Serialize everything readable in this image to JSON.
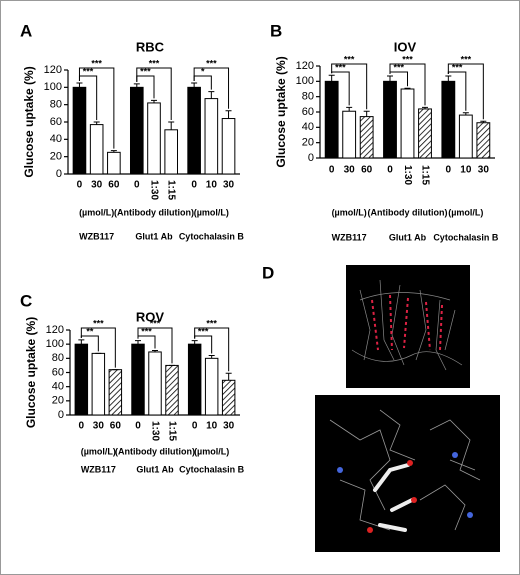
{
  "chart_data": [
    {
      "type": "bar",
      "panel": "A",
      "title": "RBC",
      "y_label": "Glucose uptake (%)",
      "categories": [
        "0",
        "30",
        "60",
        "0",
        "1:30",
        "1:15",
        "0",
        "10",
        "30"
      ],
      "values": [
        100,
        57,
        25,
        100,
        82,
        51,
        100,
        87,
        64
      ],
      "errors": [
        5,
        3,
        2,
        4,
        3,
        9,
        5,
        8,
        9
      ],
      "fills": [
        "black",
        "white",
        "white",
        "black",
        "white",
        "white",
        "black",
        "white",
        "white"
      ],
      "significance": [
        null,
        "***",
        "***",
        null,
        "***",
        "***",
        null,
        "*",
        "***"
      ],
      "groups": [
        {
          "unit": "(µmol/L)",
          "name": "WZB117"
        },
        {
          "unit": "(Antibody dilution)",
          "name": "Glut1 Ab"
        },
        {
          "unit": "(µmol/L)",
          "name": "Cytochalasin B"
        }
      ],
      "ylim": [
        0,
        120
      ],
      "yticks": [
        0,
        20,
        40,
        60,
        80,
        100,
        120
      ]
    },
    {
      "type": "bar",
      "panel": "B",
      "title": "IOV",
      "y_label": "Glucose uptake (%)",
      "categories": [
        "0",
        "30",
        "60",
        "0",
        "1:30",
        "1:15",
        "0",
        "10",
        "30"
      ],
      "values": [
        100,
        61,
        54,
        100,
        90,
        64,
        100,
        56,
        46
      ],
      "errors": [
        8,
        5,
        7,
        7,
        1,
        2,
        7,
        3,
        2
      ],
      "fills": [
        "black",
        "white",
        "hatched",
        "black",
        "white",
        "hatched",
        "black",
        "white",
        "hatched"
      ],
      "significance": [
        null,
        "***",
        "***",
        null,
        "***",
        "***",
        null,
        "***",
        "***"
      ],
      "groups": [
        {
          "unit": "(µmol/L)",
          "name": "WZB117"
        },
        {
          "unit": "(Antibody dilution)",
          "name": "Glut1 Ab"
        },
        {
          "unit": "(µmol/L)",
          "name": "Cytochalasin B"
        }
      ],
      "ylim": [
        0,
        120
      ],
      "yticks": [
        0,
        20,
        40,
        60,
        80,
        100,
        120
      ]
    },
    {
      "type": "bar",
      "panel": "C",
      "title": "ROV",
      "y_label": "Glucose uptake (%)",
      "categories": [
        "0",
        "30",
        "60",
        "0",
        "1:30",
        "1:15",
        "0",
        "10",
        "30"
      ],
      "values": [
        100,
        87,
        64,
        100,
        89,
        70,
        100,
        80,
        49
      ],
      "errors": [
        6,
        0,
        0,
        5,
        2,
        0,
        5,
        4,
        10
      ],
      "fills": [
        "black",
        "white",
        "hatched",
        "black",
        "white",
        "hatched",
        "black",
        "white",
        "hatched"
      ],
      "significance": [
        null,
        "**",
        "***",
        null,
        "***",
        "***",
        null,
        "***",
        "***"
      ],
      "groups": [
        {
          "unit": "(µmol/L)",
          "name": "WZB117"
        },
        {
          "unit": "(Antibody dilution)",
          "name": "Glut1 Ab"
        },
        {
          "unit": "(µmol/L)",
          "name": "Cytochalasin B"
        }
      ],
      "ylim": [
        0,
        120
      ],
      "yticks": [
        0,
        20,
        40,
        60,
        80,
        100,
        120
      ]
    }
  ],
  "image_panel": {
    "label": "D"
  }
}
